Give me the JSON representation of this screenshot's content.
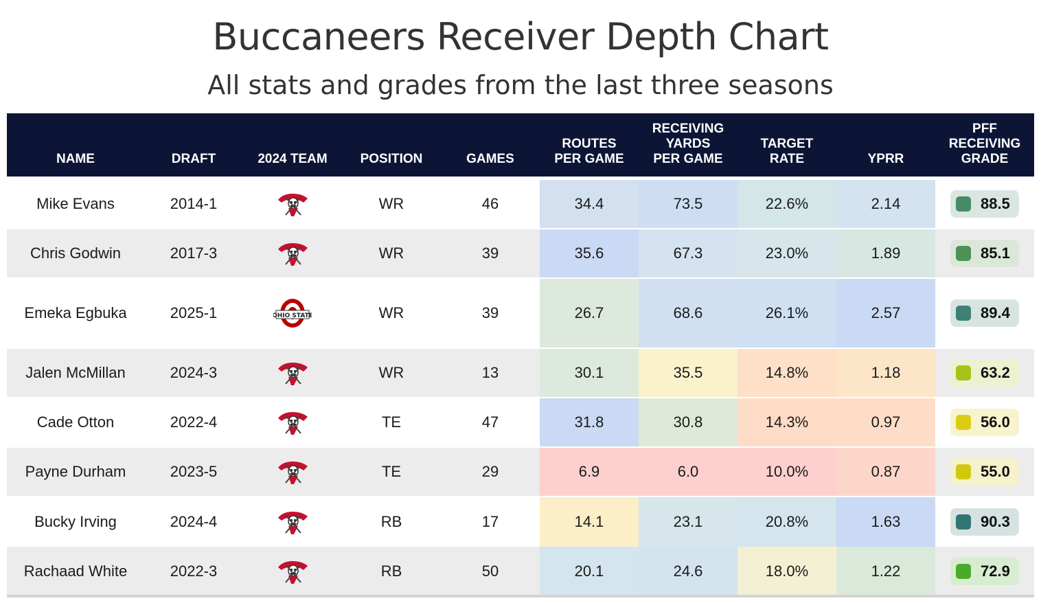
{
  "title": "Buccaneers Receiver Depth Chart",
  "subtitle": "All stats and grades from the last three seasons",
  "chart_data": {
    "type": "table",
    "columns": [
      {
        "key": "name",
        "label": "NAME"
      },
      {
        "key": "draft",
        "label": "DRAFT"
      },
      {
        "key": "team",
        "label": "2024 TEAM"
      },
      {
        "key": "position",
        "label": "POSITION"
      },
      {
        "key": "games",
        "label": "GAMES"
      },
      {
        "key": "routes",
        "label": "ROUTES\nPER GAME"
      },
      {
        "key": "yards",
        "label": "RECEIVING\nYARDS\nPER GAME"
      },
      {
        "key": "target",
        "label": "TARGET\nRATE"
      },
      {
        "key": "yprr",
        "label": "YPRR"
      },
      {
        "key": "grade",
        "label": "PFF\nRECEIVING\nGRADE"
      }
    ],
    "rows": [
      {
        "name": "Mike Evans",
        "draft": "2014-1",
        "team": "buccaneers-logo",
        "position": "WR",
        "games": "46",
        "routes": "34.4",
        "yards": "73.5",
        "target": "22.6%",
        "yprr": "2.14",
        "grade": "88.5"
      },
      {
        "name": "Chris Godwin",
        "draft": "2017-3",
        "team": "buccaneers-logo",
        "position": "WR",
        "games": "39",
        "routes": "35.6",
        "yards": "67.3",
        "target": "23.0%",
        "yprr": "1.89",
        "grade": "85.1"
      },
      {
        "name": "Emeka Egbuka",
        "draft": "2025-1",
        "team": "ohio-state-logo",
        "position": "WR",
        "games": "39",
        "routes": "26.7",
        "yards": "68.6",
        "target": "26.1%",
        "yprr": "2.57",
        "grade": "89.4"
      },
      {
        "name": "Jalen McMillan",
        "draft": "2024-3",
        "team": "buccaneers-logo",
        "position": "WR",
        "games": "13",
        "routes": "30.1",
        "yards": "35.5",
        "target": "14.8%",
        "yprr": "1.18",
        "grade": "63.2"
      },
      {
        "name": "Cade Otton",
        "draft": "2022-4",
        "team": "buccaneers-logo",
        "position": "TE",
        "games": "47",
        "routes": "31.8",
        "yards": "30.8",
        "target": "14.3%",
        "yprr": "0.97",
        "grade": "56.0"
      },
      {
        "name": "Payne Durham",
        "draft": "2023-5",
        "team": "buccaneers-logo",
        "position": "TE",
        "games": "29",
        "routes": "6.9",
        "yards": "6.0",
        "target": "10.0%",
        "yprr": "0.87",
        "grade": "55.0"
      },
      {
        "name": "Bucky Irving",
        "draft": "2024-4",
        "team": "buccaneers-logo",
        "position": "RB",
        "games": "17",
        "routes": "14.1",
        "yards": "23.1",
        "target": "20.8%",
        "yprr": "1.63",
        "grade": "90.3"
      },
      {
        "name": "Rachaad White",
        "draft": "2022-3",
        "team": "buccaneers-logo",
        "position": "RB",
        "games": "50",
        "routes": "20.1",
        "yards": "24.6",
        "target": "18.0%",
        "yprr": "1.22",
        "grade": "72.9"
      }
    ]
  },
  "colors": {
    "header_bg": "#0c1535",
    "row_alt": "#ececec",
    "heat": {
      "routes": [
        "#d2e0f0",
        "#cad9f4",
        "#dde9dc",
        "#dde9dc",
        "#cad9f4",
        "#fdd0cd",
        "#fcefc7",
        "#d4e5ef"
      ],
      "yards": [
        "#cddef2",
        "#d4e3ef",
        "#d0e0f2",
        "#f9f2cb",
        "#dfe9d9",
        "#fdd0cd",
        "#d6e6ea",
        "#d3e4ee"
      ],
      "target": [
        "#d3e6e8",
        "#d6e6ea",
        "#cfe0f3",
        "#fde0c7",
        "#fddcc7",
        "#fdd0cd",
        "#d4e5ed",
        "#f3f0d3"
      ],
      "yprr": [
        "#d3e3f0",
        "#d7e8e3",
        "#cad9f4",
        "#fde5c8",
        "#fdddc8",
        "#fdd6ca",
        "#cad9f4",
        "#dbe9da"
      ],
      "grade_swatch": [
        "#458c66",
        "#4d9157",
        "#3d8176",
        "#a8c21c",
        "#dccd12",
        "#d4c80f",
        "#2f7672",
        "#4aab2b"
      ],
      "grade_pill": [
        "#dae6df",
        "#dbe7d8",
        "#d7e4e2",
        "#eef1d0",
        "#f7f4cd",
        "#f4f1cb",
        "#d5e2e1",
        "#d8ecd0"
      ]
    }
  }
}
